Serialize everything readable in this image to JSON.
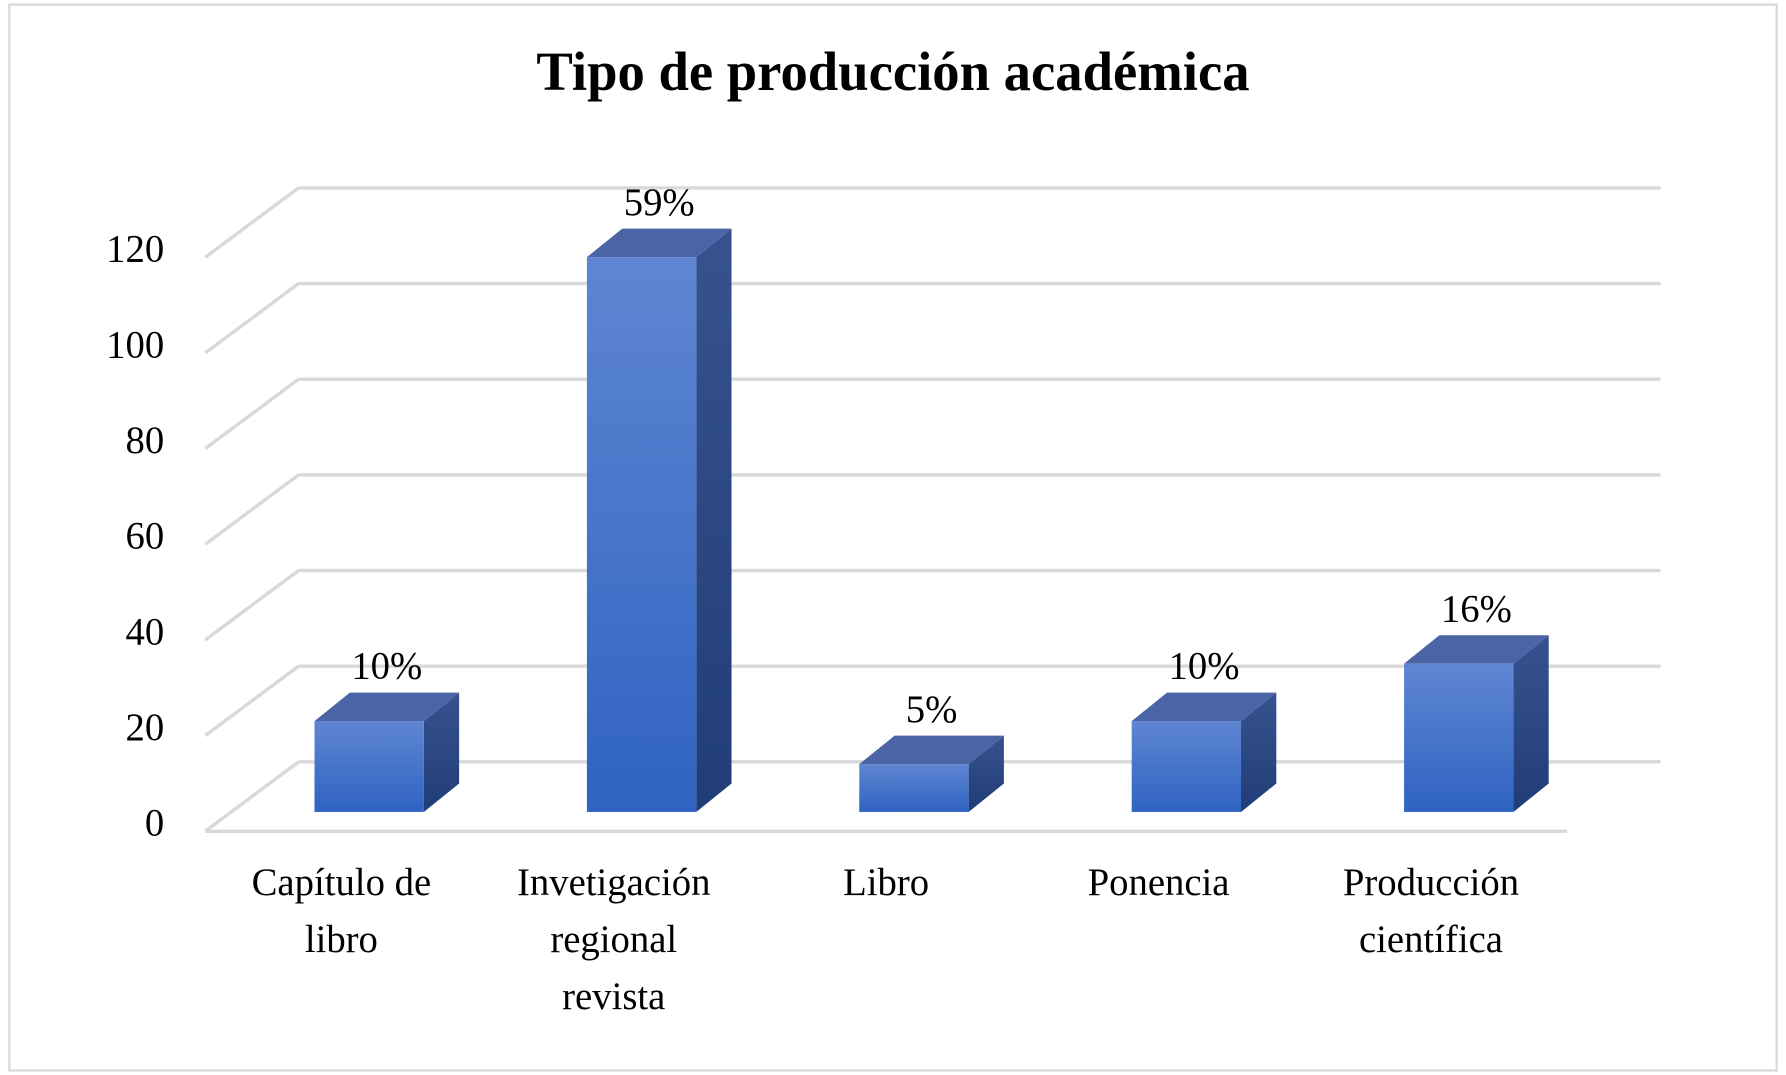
{
  "chart_data": {
    "type": "bar3d",
    "title": "Tipo de producción académica",
    "categories": [
      "Capítulo de libro",
      "Invetigación regional revista",
      "Libro",
      "Ponencia",
      "Producción científica"
    ],
    "values": [
      19,
      116,
      10,
      19,
      31
    ],
    "value_labels": [
      "10%",
      "59%",
      "5%",
      "10%",
      "16%"
    ],
    "color": "#4472c4",
    "ylim": [
      0,
      120
    ],
    "yticks": [
      0,
      20,
      40,
      60,
      80,
      100,
      120
    ],
    "grid": true
  }
}
